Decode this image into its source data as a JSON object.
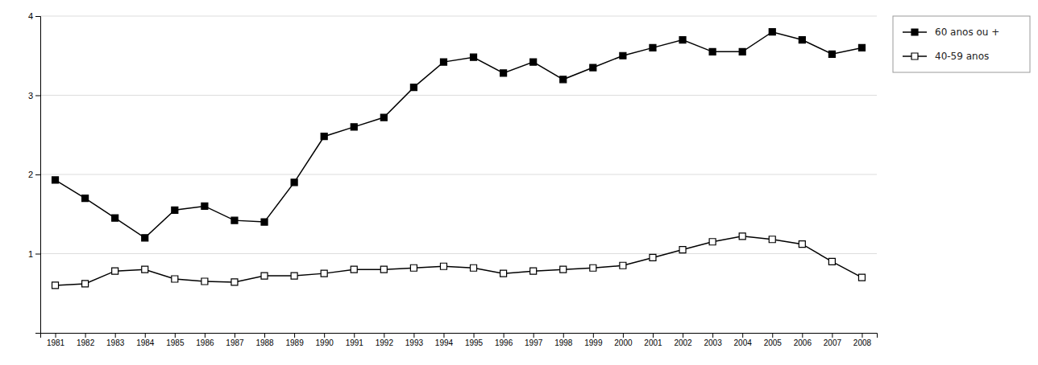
{
  "chart_data": {
    "type": "line",
    "x": [
      1981,
      1982,
      1983,
      1984,
      1985,
      1986,
      1987,
      1988,
      1989,
      1990,
      1991,
      1992,
      1993,
      1994,
      1995,
      1996,
      1997,
      1998,
      1999,
      2000,
      2001,
      2002,
      2003,
      2004,
      2005,
      2006,
      2007,
      2008
    ],
    "series": [
      {
        "name": "60 anos ou +",
        "color": "#000000",
        "marker": "square",
        "values": [
          1.93,
          1.7,
          1.45,
          1.2,
          1.55,
          1.6,
          1.42,
          1.4,
          1.9,
          2.48,
          2.6,
          2.72,
          3.1,
          3.42,
          3.48,
          3.28,
          3.42,
          3.2,
          3.35,
          3.5,
          3.6,
          3.7,
          3.55,
          3.55,
          3.8,
          3.7,
          3.52,
          3.6
        ]
      },
      {
        "name": "40-59 anos",
        "color": "#000000",
        "marker": "square-open",
        "values": [
          0.6,
          0.62,
          0.78,
          0.8,
          0.68,
          0.65,
          0.64,
          0.72,
          0.72,
          0.75,
          0.8,
          0.8,
          0.82,
          0.84,
          0.82,
          0.75,
          0.78,
          0.8,
          0.82,
          0.85,
          0.95,
          1.05,
          1.15,
          1.22,
          1.18,
          1.12,
          0.9,
          0.7
        ]
      }
    ],
    "xlim": [
      1980.5,
      2008.5
    ],
    "xticks": [
      1981,
      1982,
      1983,
      1984,
      1985,
      1986,
      1987,
      1988,
      1989,
      1990,
      1991,
      1992,
      1993,
      1994,
      1995,
      1996,
      1997,
      1998,
      1999,
      2000,
      2001,
      2002,
      2003,
      2004,
      2005,
      2006,
      2007,
      2008
    ],
    "ylim": [
      0,
      4
    ],
    "yticks": [
      1,
      2,
      3,
      4
    ],
    "grid": true,
    "legend": "right"
  }
}
